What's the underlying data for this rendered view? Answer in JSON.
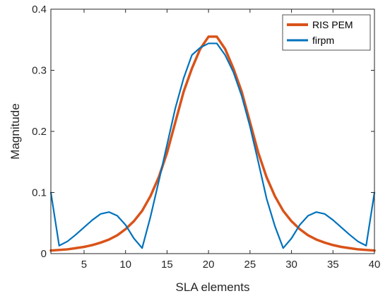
{
  "chart_data": {
    "type": "line",
    "xlabel": "SLA elements",
    "ylabel": "Magnitude",
    "xlim": [
      1,
      40
    ],
    "ylim": [
      0,
      0.4
    ],
    "xticks": [
      5,
      10,
      15,
      20,
      25,
      30,
      35,
      40
    ],
    "yticks": [
      0,
      0.1,
      0.2,
      0.3,
      0.4
    ],
    "ytick_labels": [
      "0",
      "0.1",
      "0.2",
      "0.3",
      "0.4"
    ],
    "grid": false,
    "legend_position": "top-right",
    "x": [
      1,
      2,
      3,
      4,
      5,
      6,
      7,
      8,
      9,
      10,
      11,
      12,
      13,
      14,
      15,
      16,
      17,
      18,
      19,
      20,
      21,
      22,
      23,
      24,
      25,
      26,
      27,
      28,
      29,
      30,
      31,
      32,
      33,
      34,
      35,
      36,
      37,
      38,
      39,
      40
    ],
    "series": [
      {
        "name": "RIS PEM",
        "color": "#D95319",
        "values": [
          0.005,
          0.006,
          0.007,
          0.009,
          0.011,
          0.014,
          0.018,
          0.023,
          0.03,
          0.04,
          0.053,
          0.07,
          0.094,
          0.125,
          0.165,
          0.215,
          0.265,
          0.303,
          0.335,
          0.355,
          0.355,
          0.335,
          0.303,
          0.265,
          0.215,
          0.165,
          0.125,
          0.094,
          0.07,
          0.053,
          0.04,
          0.03,
          0.023,
          0.018,
          0.014,
          0.011,
          0.009,
          0.007,
          0.006,
          0.005
        ]
      },
      {
        "name": "firpm",
        "color": "#0072BD",
        "values": [
          0.1,
          0.013,
          0.02,
          0.031,
          0.043,
          0.055,
          0.065,
          0.068,
          0.062,
          0.047,
          0.025,
          0.009,
          0.06,
          0.118,
          0.178,
          0.238,
          0.287,
          0.325,
          0.337,
          0.344,
          0.344,
          0.325,
          0.297,
          0.258,
          0.208,
          0.15,
          0.09,
          0.045,
          0.009,
          0.025,
          0.047,
          0.062,
          0.068,
          0.065,
          0.055,
          0.043,
          0.031,
          0.02,
          0.013,
          0.1
        ]
      }
    ]
  }
}
